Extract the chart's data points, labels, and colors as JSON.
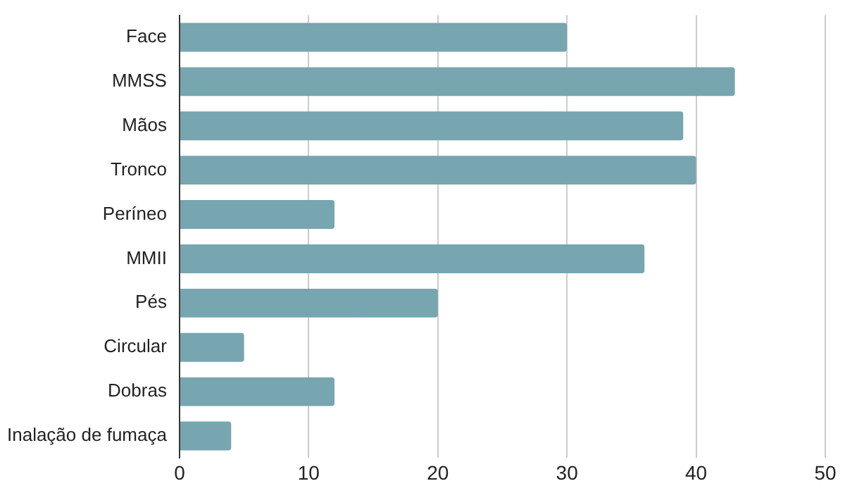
{
  "chart_data": {
    "type": "bar",
    "orientation": "horizontal",
    "categories": [
      "Face",
      "MMSS",
      "Mãos",
      "Tronco",
      "Períneo",
      "MMII",
      "Pés",
      "Circular",
      "Dobras",
      "Inalação de fumaça"
    ],
    "values": [
      30,
      43,
      39,
      40,
      12,
      36,
      20,
      5,
      12,
      4
    ],
    "color": "#77a5b0",
    "xlim": [
      0,
      50
    ],
    "xticks": [
      0,
      10,
      20,
      30,
      40,
      50
    ],
    "grid": "x",
    "legend": false
  }
}
